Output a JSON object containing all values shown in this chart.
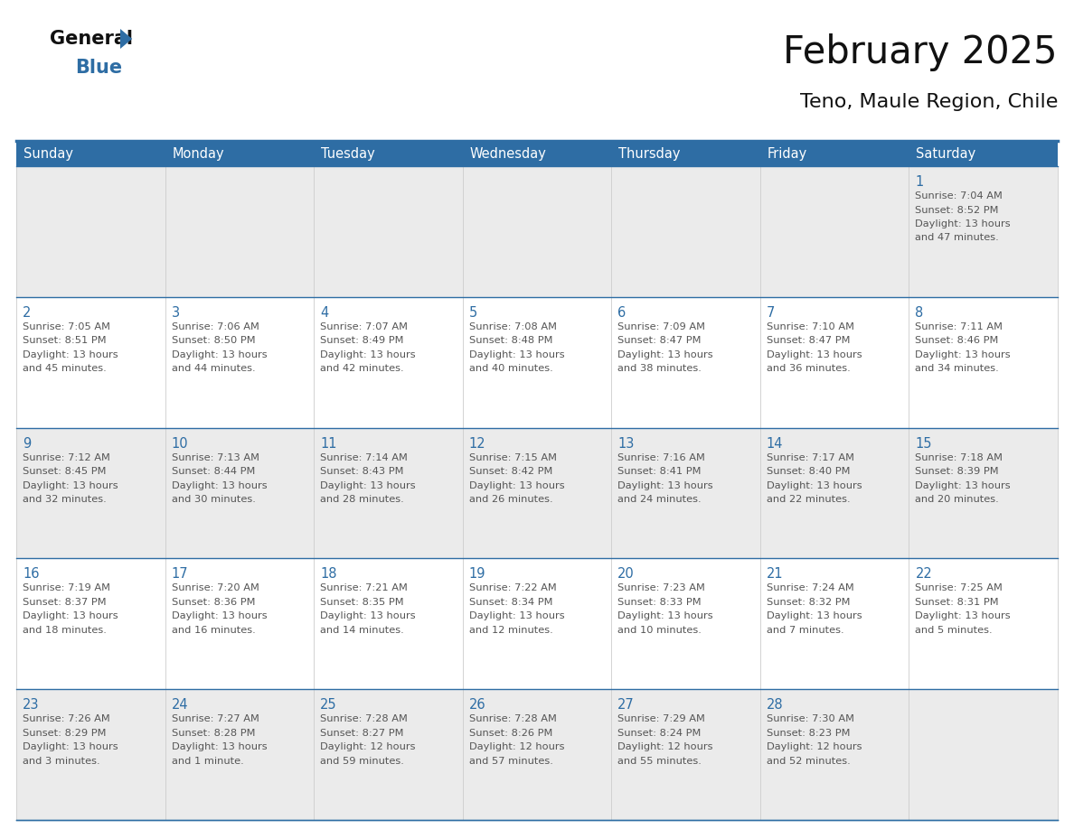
{
  "title": "February 2025",
  "subtitle": "Teno, Maule Region, Chile",
  "header_bg": "#2E6DA4",
  "header_text_color": "#FFFFFF",
  "cell_bg_odd": "#EBEBEB",
  "cell_bg_even": "#FFFFFF",
  "day_number_color": "#2E6DA4",
  "info_text_color": "#555555",
  "line_color": "#2E6DA4",
  "days_of_week": [
    "Sunday",
    "Monday",
    "Tuesday",
    "Wednesday",
    "Thursday",
    "Friday",
    "Saturday"
  ],
  "weeks": [
    [
      {
        "day": null,
        "info": ""
      },
      {
        "day": null,
        "info": ""
      },
      {
        "day": null,
        "info": ""
      },
      {
        "day": null,
        "info": ""
      },
      {
        "day": null,
        "info": ""
      },
      {
        "day": null,
        "info": ""
      },
      {
        "day": 1,
        "info": "Sunrise: 7:04 AM\nSunset: 8:52 PM\nDaylight: 13 hours\nand 47 minutes."
      }
    ],
    [
      {
        "day": 2,
        "info": "Sunrise: 7:05 AM\nSunset: 8:51 PM\nDaylight: 13 hours\nand 45 minutes."
      },
      {
        "day": 3,
        "info": "Sunrise: 7:06 AM\nSunset: 8:50 PM\nDaylight: 13 hours\nand 44 minutes."
      },
      {
        "day": 4,
        "info": "Sunrise: 7:07 AM\nSunset: 8:49 PM\nDaylight: 13 hours\nand 42 minutes."
      },
      {
        "day": 5,
        "info": "Sunrise: 7:08 AM\nSunset: 8:48 PM\nDaylight: 13 hours\nand 40 minutes."
      },
      {
        "day": 6,
        "info": "Sunrise: 7:09 AM\nSunset: 8:47 PM\nDaylight: 13 hours\nand 38 minutes."
      },
      {
        "day": 7,
        "info": "Sunrise: 7:10 AM\nSunset: 8:47 PM\nDaylight: 13 hours\nand 36 minutes."
      },
      {
        "day": 8,
        "info": "Sunrise: 7:11 AM\nSunset: 8:46 PM\nDaylight: 13 hours\nand 34 minutes."
      }
    ],
    [
      {
        "day": 9,
        "info": "Sunrise: 7:12 AM\nSunset: 8:45 PM\nDaylight: 13 hours\nand 32 minutes."
      },
      {
        "day": 10,
        "info": "Sunrise: 7:13 AM\nSunset: 8:44 PM\nDaylight: 13 hours\nand 30 minutes."
      },
      {
        "day": 11,
        "info": "Sunrise: 7:14 AM\nSunset: 8:43 PM\nDaylight: 13 hours\nand 28 minutes."
      },
      {
        "day": 12,
        "info": "Sunrise: 7:15 AM\nSunset: 8:42 PM\nDaylight: 13 hours\nand 26 minutes."
      },
      {
        "day": 13,
        "info": "Sunrise: 7:16 AM\nSunset: 8:41 PM\nDaylight: 13 hours\nand 24 minutes."
      },
      {
        "day": 14,
        "info": "Sunrise: 7:17 AM\nSunset: 8:40 PM\nDaylight: 13 hours\nand 22 minutes."
      },
      {
        "day": 15,
        "info": "Sunrise: 7:18 AM\nSunset: 8:39 PM\nDaylight: 13 hours\nand 20 minutes."
      }
    ],
    [
      {
        "day": 16,
        "info": "Sunrise: 7:19 AM\nSunset: 8:37 PM\nDaylight: 13 hours\nand 18 minutes."
      },
      {
        "day": 17,
        "info": "Sunrise: 7:20 AM\nSunset: 8:36 PM\nDaylight: 13 hours\nand 16 minutes."
      },
      {
        "day": 18,
        "info": "Sunrise: 7:21 AM\nSunset: 8:35 PM\nDaylight: 13 hours\nand 14 minutes."
      },
      {
        "day": 19,
        "info": "Sunrise: 7:22 AM\nSunset: 8:34 PM\nDaylight: 13 hours\nand 12 minutes."
      },
      {
        "day": 20,
        "info": "Sunrise: 7:23 AM\nSunset: 8:33 PM\nDaylight: 13 hours\nand 10 minutes."
      },
      {
        "day": 21,
        "info": "Sunrise: 7:24 AM\nSunset: 8:32 PM\nDaylight: 13 hours\nand 7 minutes."
      },
      {
        "day": 22,
        "info": "Sunrise: 7:25 AM\nSunset: 8:31 PM\nDaylight: 13 hours\nand 5 minutes."
      }
    ],
    [
      {
        "day": 23,
        "info": "Sunrise: 7:26 AM\nSunset: 8:29 PM\nDaylight: 13 hours\nand 3 minutes."
      },
      {
        "day": 24,
        "info": "Sunrise: 7:27 AM\nSunset: 8:28 PM\nDaylight: 13 hours\nand 1 minute."
      },
      {
        "day": 25,
        "info": "Sunrise: 7:28 AM\nSunset: 8:27 PM\nDaylight: 12 hours\nand 59 minutes."
      },
      {
        "day": 26,
        "info": "Sunrise: 7:28 AM\nSunset: 8:26 PM\nDaylight: 12 hours\nand 57 minutes."
      },
      {
        "day": 27,
        "info": "Sunrise: 7:29 AM\nSunset: 8:24 PM\nDaylight: 12 hours\nand 55 minutes."
      },
      {
        "day": 28,
        "info": "Sunrise: 7:30 AM\nSunset: 8:23 PM\nDaylight: 12 hours\nand 52 minutes."
      },
      {
        "day": null,
        "info": ""
      }
    ]
  ]
}
